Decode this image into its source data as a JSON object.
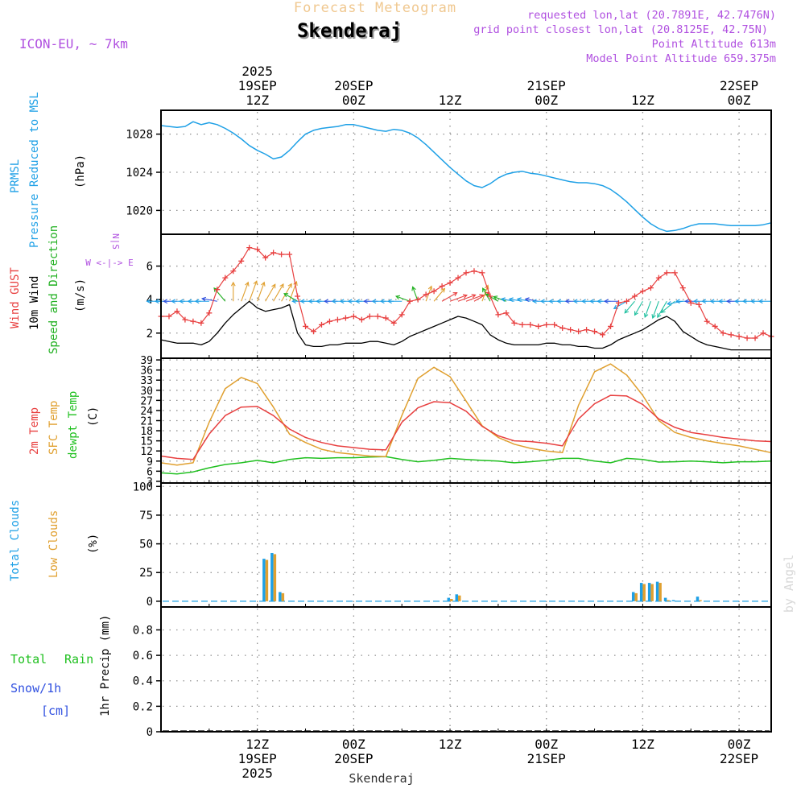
{
  "header": {
    "banner": "Forecast Meteogram",
    "location": "Skenderaj",
    "model": "ICON-EU, ~ 7km",
    "requested": "requested lon,lat (20.7891E, 42.7476N)",
    "grid_point": "grid point closest lon,lat (20.8125E, 42.75N)",
    "point_altitude": "Point Altitude 613m",
    "model_altitude": "Model Point Altitude 659.375m"
  },
  "footer": {
    "location": "Skenderaj",
    "credit": "by Angel"
  },
  "colors": {
    "pressure": "#1ea0e6",
    "gust": "#e84040",
    "wind": "#000000",
    "wind_label": "#20b020",
    "temp2m": "#e84040",
    "sfc": "#e0a030",
    "dewpt": "#20c020",
    "total_clouds": "#1ea0e6",
    "low_clouds": "#e0a030",
    "rain": "#20c020",
    "snow": "#3050e0",
    "header": "#b050e0",
    "banner": "#f0c890",
    "credit": "#d8d8d8"
  },
  "time_axis": {
    "top_labels": [
      {
        "t": 12,
        "lines": [
          "2025",
          "19SEP",
          "12Z"
        ]
      },
      {
        "t": 24,
        "lines": [
          "20SEP",
          "00Z"
        ]
      },
      {
        "t": 36,
        "lines": [
          "12Z"
        ]
      },
      {
        "t": 48,
        "lines": [
          "21SEP",
          "00Z"
        ]
      },
      {
        "t": 60,
        "lines": [
          "12Z"
        ]
      },
      {
        "t": 72,
        "lines": [
          "22SEP",
          "00Z"
        ]
      }
    ],
    "bottom_labels": [
      {
        "t": 12,
        "lines": [
          "12Z",
          "19SEP",
          "2025"
        ]
      },
      {
        "t": 24,
        "lines": [
          "00Z",
          "20SEP"
        ]
      },
      {
        "t": 36,
        "lines": [
          "12Z"
        ]
      },
      {
        "t": 48,
        "lines": [
          "00Z",
          "21SEP"
        ]
      },
      {
        "t": 60,
        "lines": [
          "12Z"
        ]
      },
      {
        "t": 72,
        "lines": [
          "00Z",
          "22SEP"
        ]
      }
    ]
  },
  "panel_labels": {
    "pressure": {
      "l1": "PRMSL",
      "l2": "Pressure Reduced to MSL",
      "unit": "(hPa)"
    },
    "wind": {
      "l1": "Wind GUST",
      "l2": "10m Wind",
      "l3": "Speed and Direction",
      "unit": "(m/s)",
      "compass_ns": "N|S",
      "compass_ew": "W <-|-> E"
    },
    "temp": {
      "l1": "2m Temp",
      "l2": "SFC Temp",
      "l3": "dewpt Temp",
      "unit": "(C)"
    },
    "clouds": {
      "l1": "Total Clouds",
      "l2": "Low Clouds",
      "unit": "(%)"
    },
    "precip": {
      "l1": "Total",
      "l1b": "Rain",
      "l2": "Snow/1h",
      "l3": "[cm]",
      "unit": "1hr Precip (mm)"
    }
  },
  "chart_data": [
    {
      "type": "line",
      "title": "PRMSL Pressure Reduced to MSL",
      "ylabel": "hPa",
      "ylim": [
        1017.5,
        1030.5
      ],
      "yticks": [
        1020,
        1024,
        1028
      ],
      "tick_labels": [
        "1020",
        "1024",
        "1028"
      ],
      "x": [
        0,
        1,
        2,
        3,
        4,
        5,
        6,
        7,
        8,
        9,
        10,
        11,
        12,
        13,
        14,
        15,
        16,
        17,
        18,
        19,
        20,
        21,
        22,
        23,
        24,
        25,
        26,
        27,
        28,
        29,
        30,
        31,
        32,
        33,
        34,
        35,
        36,
        37,
        38,
        39,
        40,
        41,
        42,
        43,
        44,
        45,
        46,
        47,
        48,
        49,
        50,
        51,
        52,
        53,
        54,
        55,
        56,
        57,
        58,
        59,
        60,
        61,
        62,
        63,
        64,
        65,
        66,
        67,
        68,
        69,
        70,
        71,
        72,
        73,
        74,
        75,
        76
      ],
      "series": [
        {
          "name": "PRMSL",
          "values": [
            1028.9,
            1028.8,
            1028.7,
            1028.8,
            1029.3,
            1029.0,
            1029.2,
            1029.0,
            1028.6,
            1028.1,
            1027.5,
            1026.8,
            1026.3,
            1025.9,
            1025.4,
            1025.6,
            1026.3,
            1027.2,
            1028.0,
            1028.4,
            1028.6,
            1028.7,
            1028.8,
            1029.0,
            1029.0,
            1028.8,
            1028.6,
            1028.4,
            1028.3,
            1028.5,
            1028.4,
            1028.1,
            1027.6,
            1026.9,
            1026.1,
            1025.3,
            1024.5,
            1023.8,
            1023.1,
            1022.6,
            1022.4,
            1022.8,
            1023.4,
            1023.8,
            1024.0,
            1024.1,
            1023.9,
            1023.8,
            1023.6,
            1023.4,
            1023.2,
            1023.0,
            1022.9,
            1022.9,
            1022.8,
            1022.6,
            1022.2,
            1021.6,
            1020.9,
            1020.1,
            1019.3,
            1018.6,
            1018.1,
            1017.8,
            1017.9,
            1018.1,
            1018.4,
            1018.6,
            1018.6,
            1018.6,
            1018.5,
            1018.4,
            1018.4,
            1018.4,
            1018.4,
            1018.5,
            1018.7
          ]
        }
      ]
    },
    {
      "type": "line",
      "title": "Wind GUST / 10m Wind Speed and Direction",
      "ylabel": "m/s",
      "ylim": [
        0.5,
        7.9
      ],
      "yticks": [
        2,
        4,
        6
      ],
      "tick_labels": [
        "2",
        "4",
        "6"
      ],
      "x": [
        0,
        1,
        2,
        3,
        4,
        5,
        6,
        7,
        8,
        9,
        10,
        11,
        12,
        13,
        14,
        15,
        16,
        17,
        18,
        19,
        20,
        21,
        22,
        23,
        24,
        25,
        26,
        27,
        28,
        29,
        30,
        31,
        32,
        33,
        34,
        35,
        36,
        37,
        38,
        39,
        40,
        41,
        42,
        43,
        44,
        45,
        46,
        47,
        48,
        49,
        50,
        51,
        52,
        53,
        54,
        55,
        56,
        57,
        58,
        59,
        60,
        61,
        62,
        63,
        64,
        65,
        66,
        67,
        68,
        69,
        70,
        71,
        72,
        73,
        74,
        75,
        76
      ],
      "series": [
        {
          "name": "Wind GUST",
          "values": [
            3.0,
            3.0,
            3.3,
            2.8,
            2.7,
            2.6,
            3.2,
            4.6,
            5.3,
            5.7,
            6.3,
            7.1,
            7.0,
            6.5,
            6.8,
            6.7,
            6.7,
            4.2,
            2.4,
            2.1,
            2.5,
            2.7,
            2.8,
            2.9,
            3.0,
            2.8,
            3.0,
            3.0,
            2.9,
            2.6,
            3.1,
            3.9,
            4.0,
            4.3,
            4.5,
            4.8,
            5.0,
            5.3,
            5.6,
            5.7,
            5.6,
            4.2,
            3.1,
            3.2,
            2.6,
            2.5,
            2.5,
            2.4,
            2.5,
            2.5,
            2.3,
            2.2,
            2.1,
            2.2,
            2.1,
            1.9,
            2.4,
            3.8,
            3.9,
            4.2,
            4.5,
            4.7,
            5.3,
            5.6,
            5.6,
            4.7,
            3.8,
            3.7,
            2.7,
            2.4,
            2.0,
            1.9,
            1.8,
            1.7,
            1.7,
            2.0,
            1.8
          ]
        },
        {
          "name": "10m Wind",
          "values": [
            1.6,
            1.5,
            1.4,
            1.4,
            1.4,
            1.3,
            1.5,
            2.0,
            2.6,
            3.1,
            3.5,
            3.9,
            3.5,
            3.3,
            3.4,
            3.5,
            3.7,
            2.0,
            1.3,
            1.2,
            1.2,
            1.3,
            1.3,
            1.4,
            1.4,
            1.4,
            1.5,
            1.5,
            1.4,
            1.3,
            1.5,
            1.8,
            2.0,
            2.2,
            2.4,
            2.6,
            2.8,
            3.0,
            2.9,
            2.7,
            2.5,
            1.9,
            1.6,
            1.4,
            1.3,
            1.3,
            1.3,
            1.3,
            1.4,
            1.4,
            1.3,
            1.3,
            1.2,
            1.2,
            1.1,
            1.1,
            1.3,
            1.6,
            1.8,
            2.0,
            2.2,
            2.5,
            2.8,
            3.0,
            2.7,
            2.1,
            1.8,
            1.5,
            1.3,
            1.2,
            1.1,
            1.0,
            1.0,
            1.0,
            1.0,
            1.0,
            1.0
          ]
        }
      ],
      "wind_direction_deg": [
        90,
        90,
        90,
        90,
        90,
        90,
        90,
        100,
        140,
        180,
        200,
        200,
        200,
        210,
        210,
        210,
        200,
        120,
        90,
        90,
        90,
        90,
        90,
        90,
        90,
        90,
        90,
        90,
        90,
        90,
        90,
        110,
        160,
        200,
        220,
        240,
        250,
        250,
        250,
        240,
        200,
        150,
        120,
        110,
        100,
        100,
        100,
        100,
        90,
        90,
        90,
        90,
        90,
        90,
        90,
        90,
        90,
        90,
        60,
        40,
        30,
        20,
        20,
        30,
        50,
        80,
        90,
        90,
        90,
        90,
        90,
        90,
        90,
        90,
        90,
        90,
        90
      ]
    },
    {
      "type": "line",
      "title": "2m Temp / SFC Temp / dewpt Temp",
      "ylabel": "C",
      "ylim": [
        2.5,
        39.5
      ],
      "yticks": [
        3,
        6,
        9,
        12,
        15,
        18,
        21,
        24,
        27,
        30,
        33,
        36,
        39
      ],
      "tick_labels": [
        "3",
        "6",
        "9",
        "12",
        "15",
        "18",
        "21",
        "24",
        "27",
        "30",
        "33",
        "36",
        "39"
      ],
      "x": [
        0,
        2,
        4,
        6,
        8,
        10,
        12,
        14,
        16,
        18,
        20,
        22,
        24,
        26,
        28,
        30,
        32,
        34,
        36,
        38,
        40,
        42,
        44,
        46,
        48,
        50,
        52,
        54,
        56,
        58,
        60,
        62,
        64,
        66,
        68,
        70,
        72,
        74,
        76
      ],
      "series": [
        {
          "name": "2m Temp",
          "values": [
            10.5,
            9.8,
            9.5,
            17.0,
            22.5,
            25.0,
            25.2,
            22.5,
            18.5,
            16.0,
            14.5,
            13.5,
            13.0,
            12.5,
            12.3,
            20.5,
            24.8,
            26.6,
            26.3,
            23.8,
            19.3,
            16.5,
            15.0,
            14.8,
            14.3,
            13.5,
            21.5,
            26.0,
            28.5,
            28.3,
            25.8,
            21.5,
            19.0,
            17.5,
            16.8,
            16.0,
            15.5,
            15.0,
            14.8
          ]
        },
        {
          "name": "SFC Temp",
          "values": [
            8.5,
            7.8,
            8.5,
            20.5,
            30.5,
            33.8,
            32.0,
            25.0,
            17.0,
            14.5,
            12.5,
            11.5,
            11.0,
            10.5,
            10.3,
            22.5,
            33.5,
            36.8,
            34.0,
            26.8,
            19.5,
            16.0,
            14.0,
            12.8,
            12.0,
            11.5,
            25.5,
            35.5,
            37.8,
            34.5,
            28.5,
            21.0,
            17.5,
            16.0,
            15.0,
            14.2,
            13.5,
            12.5,
            11.5
          ]
        },
        {
          "name": "dewpt Temp",
          "values": [
            5.5,
            5.2,
            5.8,
            7.0,
            8.0,
            8.5,
            9.2,
            8.5,
            9.5,
            10.0,
            9.8,
            10.0,
            10.0,
            10.2,
            10.3,
            9.5,
            8.8,
            9.2,
            9.8,
            9.5,
            9.2,
            9.0,
            8.5,
            8.8,
            9.2,
            9.8,
            9.8,
            9.0,
            8.5,
            9.8,
            9.5,
            8.7,
            8.8,
            9.0,
            8.8,
            8.5,
            8.8,
            8.8,
            9.0
          ]
        }
      ]
    },
    {
      "type": "bar",
      "title": "Total Clouds / Low Clouds",
      "ylabel": "%",
      "ylim": [
        -5,
        103
      ],
      "yticks": [
        0,
        25,
        50,
        75,
        100
      ],
      "tick_labels": [
        "0",
        "25",
        "50",
        "75",
        "100"
      ],
      "x": [
        13,
        14,
        15,
        36,
        37,
        59,
        60,
        61,
        62,
        63,
        64,
        67
      ],
      "series": [
        {
          "name": "Total Clouds",
          "values": [
            37,
            42,
            8,
            3,
            6,
            8,
            16,
            16,
            17,
            3,
            1,
            4
          ]
        },
        {
          "name": "Low Clouds",
          "values": [
            36,
            41,
            7,
            2,
            5,
            7,
            15,
            15,
            16,
            1,
            0,
            1
          ]
        }
      ]
    },
    {
      "type": "bar",
      "title": "1hr Precip",
      "ylabel": "mm",
      "ylim": [
        0,
        0.98
      ],
      "yticks": [
        0,
        0.2,
        0.4,
        0.6,
        0.8
      ],
      "tick_labels": [
        "0",
        "0.2",
        "0.4",
        "0.6",
        "0.8"
      ],
      "x": [],
      "series": [
        {
          "name": "Total Rain",
          "values": []
        },
        {
          "name": "Snow/1h",
          "values": []
        }
      ]
    }
  ]
}
